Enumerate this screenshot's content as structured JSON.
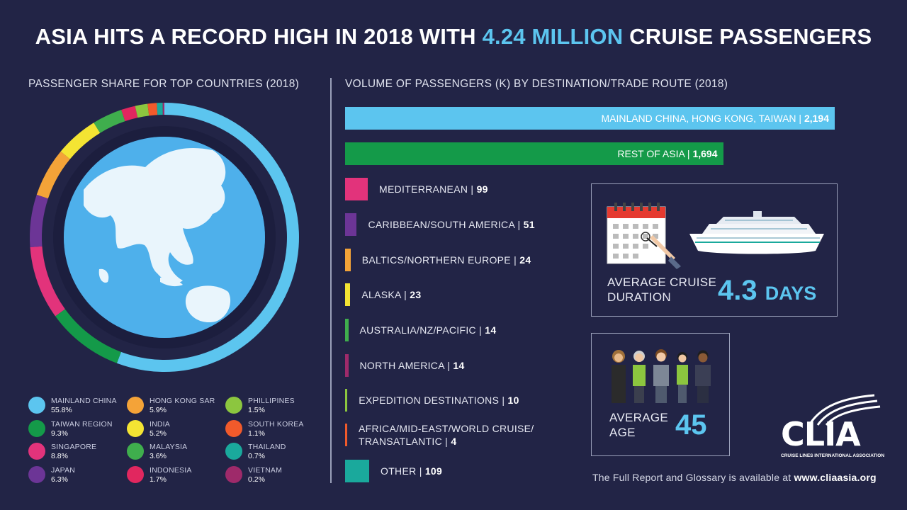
{
  "title": {
    "pre": "ASIA HITS A RECORD HIGH IN 2018 WITH ",
    "highlight": "4.24 MILLION",
    "post": " CRUISE PASSENGERS"
  },
  "left_section_label": "PASSENGER SHARE FOR TOP COUNTRIES (2018)",
  "right_section_label": "VOLUME OF PASSENGERS (K) BY DESTINATION/TRADE ROUTE (2018)",
  "chart_data": [
    {
      "type": "pie",
      "title": "PASSENGER SHARE FOR TOP COUNTRIES (2018)",
      "categories": [
        "MAINLAND CHINA",
        "TAIWAN REGION",
        "SINGAPORE",
        "JAPAN",
        "HONG KONG SAR",
        "INDIA",
        "MALAYSIA",
        "INDONESIA",
        "PHILLIPINES",
        "SOUTH KOREA",
        "THAILAND",
        "VIETNAM"
      ],
      "values": [
        55.8,
        9.3,
        8.8,
        6.3,
        5.9,
        5.2,
        3.6,
        1.7,
        1.5,
        1.1,
        0.7,
        0.2
      ],
      "labels": [
        "55.8%",
        "9.3%",
        "8.8%",
        "6.3%",
        "5.9%",
        "5.2%",
        "3.6%",
        "1.7%",
        "1.5%",
        "1.1%",
        "0.7%",
        "0.2%"
      ],
      "colors": [
        "#5cc5ef",
        "#149a49",
        "#e2337b",
        "#6c3596",
        "#f4a338",
        "#f4e433",
        "#3fae4d",
        "#e1275f",
        "#8cc63f",
        "#f15a2b",
        "#1aa99c",
        "#9e2a6a"
      ],
      "legend_placement": "bottom"
    },
    {
      "type": "bar",
      "orientation": "horizontal",
      "title": "VOLUME OF PASSENGERS (K) BY DESTINATION/TRADE ROUTE (2018)",
      "categories": [
        "MAINLAND CHINA, HONG KONG, TAIWAN",
        "REST OF ASIA",
        "MEDITERRANEAN",
        "CARIBBEAN/SOUTH AMERICA",
        "BALTICS/NORTHERN EUROPE",
        "ALASKA",
        "AUSTRALIA/NZ/PACIFIC",
        "NORTH AMERICA",
        "EXPEDITION DESTINATIONS",
        "AFRICA/MID-EAST/WORLD CRUISE/TRANSATLANTIC",
        "OTHER"
      ],
      "values": [
        2194,
        1694,
        99,
        51,
        24,
        23,
        14,
        14,
        10,
        4,
        109
      ],
      "display": [
        {
          "name": "MAINLAND CHINA, HONG KONG, TAIWAN",
          "value": "2,194"
        },
        {
          "name": "REST OF ASIA",
          "value": "1,694"
        },
        {
          "name": "MEDITERRANEAN",
          "value": "99"
        },
        {
          "name": "CARIBBEAN/SOUTH AMERICA",
          "value": "51"
        },
        {
          "name": "BALTICS/NORTHERN EUROPE",
          "value": "24"
        },
        {
          "name": "ALASKA",
          "value": "23"
        },
        {
          "name": "AUSTRALIA/NZ/PACIFIC",
          "value": "14"
        },
        {
          "name": "NORTH AMERICA",
          "value": "14"
        },
        {
          "name": "EXPEDITION DESTINATIONS",
          "value": "10"
        },
        {
          "name": "AFRICA/MID-EAST/WORLD CRUISE/\nTRANSATLANTIC",
          "value": "4"
        },
        {
          "name": "OTHER",
          "value": "109"
        }
      ],
      "colors": [
        "#5cc5ef",
        "#149a49",
        "#e2337b",
        "#6c3596",
        "#f4a338",
        "#f4e433",
        "#3fae4d",
        "#9e2a6a",
        "#8cc63f",
        "#f15a2b",
        "#1aa99c"
      ]
    }
  ],
  "duration_box": {
    "label_line1": "AVERAGE CRUISE",
    "label_line2": "DURATION",
    "value": "4.3",
    "unit": "DAYS"
  },
  "age_box": {
    "label_line1": "AVERAGE",
    "label_line2": "AGE",
    "value": "45"
  },
  "footer": {
    "text": "The Full Report and Glossary is available at ",
    "link": "www.cliaasia.org"
  },
  "logo": {
    "text": "CLIA",
    "subtitle": "CRUISE LINES INTERNATIONAL ASSOCIATION"
  },
  "icons": [
    "globe-icon",
    "calendar-icon",
    "cruise-ship-icon",
    "people-icon",
    "clia-logo-icon"
  ]
}
